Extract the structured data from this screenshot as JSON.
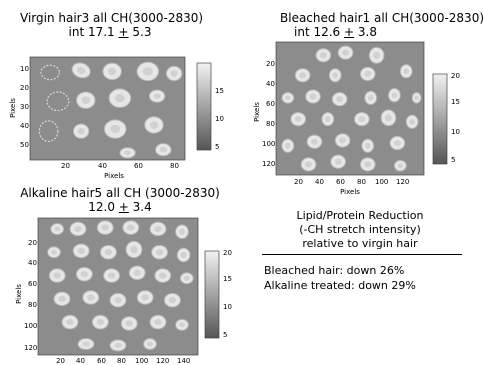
{
  "chart_data": [
    {
      "type": "heatmap",
      "title": "Virgin hair3 all CH(3000-2830)",
      "subtitle_prefix": "int 17.1 ",
      "subtitle_pm": "+",
      "subtitle_suffix": " 5.3",
      "xlabel": "Pixels",
      "ylabel": "Pixels",
      "xticks": [
        "20",
        "40",
        "60",
        "80"
      ],
      "yticks": [
        "10",
        "20",
        "30",
        "40",
        "50"
      ],
      "colorbar": {
        "ticks": [
          "15",
          "10",
          "5"
        ],
        "range": [
          5,
          20
        ]
      }
    },
    {
      "type": "heatmap",
      "title": "Bleached hair1 all CH(3000-2830)",
      "subtitle_prefix": "int 12.6 ",
      "subtitle_pm": "+",
      "subtitle_suffix": " 3.8",
      "xlabel": "Pixels",
      "ylabel": "Pixels",
      "xticks": [
        "20",
        "40",
        "60",
        "80",
        "100",
        "120"
      ],
      "yticks": [
        "20",
        "40",
        "60",
        "80",
        "100",
        "120"
      ],
      "colorbar": {
        "ticks": [
          "20",
          "15",
          "10",
          "5"
        ],
        "range": [
          5,
          20
        ]
      }
    },
    {
      "type": "heatmap",
      "title": "Alkaline hair5 all CH (3000-2830)",
      "subtitle_prefix": "12.0 ",
      "subtitle_pm": "+",
      "subtitle_suffix": " 3.4",
      "xlabel": "",
      "ylabel": "Pixels",
      "xticks": [
        "20",
        "40",
        "60",
        "80",
        "100",
        "120",
        "140"
      ],
      "yticks": [
        "20",
        "40",
        "60",
        "80",
        "100",
        "120"
      ],
      "colorbar": {
        "ticks": [
          "20",
          "15",
          "10",
          "5"
        ],
        "range": [
          5,
          20
        ]
      }
    }
  ],
  "summary": {
    "line1": "Lipid/Protein Reduction",
    "line2": "(-CH stretch intensity)",
    "line3": "relative to virgin hair",
    "bleached": "Bleached hair: down 26%",
    "alkaline": "Alkaline treated: down 29%"
  },
  "colors": {
    "background": "#8c8c8c",
    "fiber": "#e6e6e6",
    "fiber_edge": "#b4b4b4"
  }
}
